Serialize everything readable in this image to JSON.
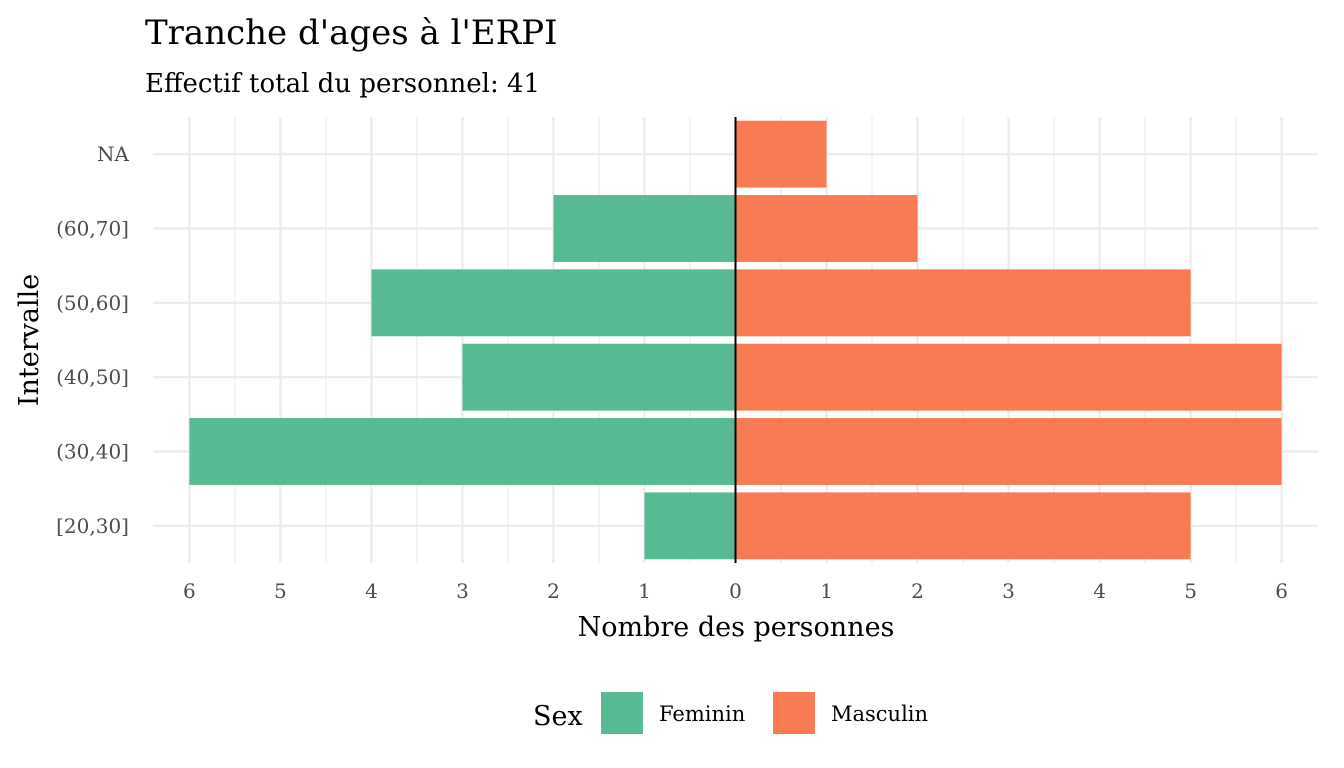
{
  "chart_data": {
    "type": "bar",
    "orientation": "horizontal",
    "subtype": "population-pyramid",
    "title": "Tranche d'ages à l'ERPI",
    "subtitle": "Effectif total du personnel: 41",
    "xlabel": "Nombre des personnes",
    "ylabel": "Intervalle",
    "categories": [
      "[20,30]",
      "(30,40]",
      "(40,50]",
      "(50,60]",
      "(60,70]",
      "NA"
    ],
    "series": [
      {
        "name": "Feminin",
        "color": "#57ba93",
        "values": [
          1,
          6,
          3,
          4,
          2,
          0
        ]
      },
      {
        "name": "Masculin",
        "color": "#f97b53",
        "values": [
          5,
          6,
          6,
          5,
          2,
          1
        ]
      }
    ],
    "xlim": [
      -6.4,
      6.4
    ],
    "x_ticks": [
      -6,
      -5,
      -4,
      -3,
      -2,
      -1,
      0,
      1,
      2,
      3,
      4,
      5,
      6
    ],
    "x_tick_labels": [
      "6",
      "5",
      "4",
      "3",
      "2",
      "1",
      "0",
      "1",
      "2",
      "3",
      "4",
      "5",
      "6"
    ],
    "grid": true,
    "legend": {
      "title": "Sex",
      "position": "bottom"
    }
  }
}
